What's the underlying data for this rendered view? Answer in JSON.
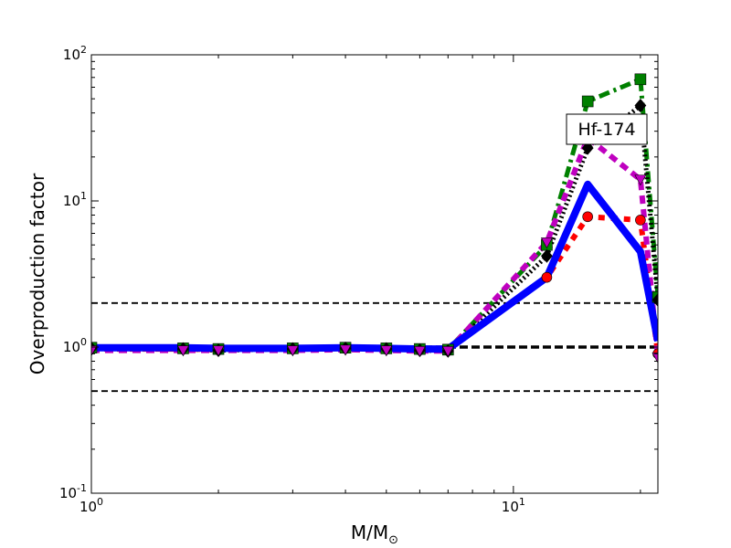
{
  "chart_data": {
    "type": "line",
    "xscale": "log",
    "yscale": "log",
    "xlim": [
      1,
      22
    ],
    "ylim": [
      0.1,
      100
    ],
    "xlabel": "M/M",
    "xlabel_sub": "⊙",
    "ylabel": "Overproduction factor",
    "x_ticks": [
      {
        "base": "10",
        "exp": "0",
        "value": 1
      },
      {
        "base": "10",
        "exp": "1",
        "value": 10
      }
    ],
    "y_ticks": [
      {
        "base": "10",
        "exp": "-1",
        "value": 0.1
      },
      {
        "base": "10",
        "exp": "0",
        "value": 1
      },
      {
        "base": "10",
        "exp": "1",
        "value": 10
      },
      {
        "base": "10",
        "exp": "2",
        "value": 100
      }
    ],
    "annotation": "Hf-174",
    "hlines": [
      {
        "y": 2,
        "style": "dashed",
        "weight": "thin"
      },
      {
        "y": 1,
        "style": "dashed",
        "weight": "thick"
      },
      {
        "y": 0.5,
        "style": "dashed",
        "weight": "thin"
      }
    ],
    "grid": false,
    "series": [
      {
        "color": "#ff0000",
        "dash": "dotted",
        "marker": "circle",
        "x": [
          1,
          1.65,
          2,
          3,
          4,
          5,
          6,
          7,
          12,
          15,
          20,
          22
        ],
        "y": [
          0.97,
          0.97,
          0.96,
          0.97,
          0.98,
          0.97,
          0.96,
          0.96,
          3.0,
          7.8,
          7.4,
          0.9
        ]
      },
      {
        "color": "#008000",
        "dash": "dashdot",
        "marker": "square",
        "x": [
          1,
          1.65,
          2,
          3,
          4,
          5,
          6,
          7,
          12,
          15,
          20,
          22
        ],
        "y": [
          0.99,
          0.98,
          0.97,
          0.98,
          0.99,
          0.98,
          0.97,
          0.96,
          5.0,
          48,
          68,
          2.2
        ]
      },
      {
        "color": "#000000",
        "dash": "densedot",
        "marker": "diamond",
        "x": [
          1,
          1.65,
          2,
          3,
          4,
          5,
          6,
          7,
          12,
          15,
          20,
          22
        ],
        "y": [
          0.98,
          0.97,
          0.95,
          0.97,
          0.98,
          0.97,
          0.95,
          0.94,
          4.2,
          23,
          45,
          2.1
        ]
      },
      {
        "color": "#bf00bf",
        "dash": "dashed",
        "marker": "triangle-down",
        "x": [
          1,
          1.65,
          2,
          3,
          4,
          5,
          6,
          7,
          12,
          15,
          20,
          22
        ],
        "y": [
          0.95,
          0.95,
          0.95,
          0.95,
          0.96,
          0.95,
          0.94,
          0.94,
          5.2,
          27,
          14,
          0.85
        ]
      },
      {
        "color": "#0000ff",
        "dash": "solid",
        "marker": "none",
        "x": [
          1,
          1.65,
          2,
          3,
          4,
          5,
          6,
          7,
          12,
          15,
          20,
          22
        ],
        "y": [
          0.99,
          0.99,
          0.98,
          0.98,
          0.99,
          0.98,
          0.97,
          0.97,
          3.0,
          13,
          4.5,
          1.1
        ]
      }
    ]
  }
}
